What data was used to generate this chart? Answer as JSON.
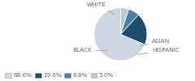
{
  "labels": [
    "WHITE",
    "BLACK",
    "ASIAN",
    "HISPANIC"
  ],
  "values": [
    68.6,
    19.6,
    6.8,
    5.0
  ],
  "colors": [
    "#cdd6e3",
    "#1e4d6b",
    "#4a7fa5",
    "#bec8d4"
  ],
  "legend_labels": [
    "68.6%",
    "19.6%",
    "6.8%",
    "5.0%"
  ],
  "background_color": "#ffffff",
  "startangle": 90,
  "label_fontsize": 5.2,
  "legend_fontsize": 5.2,
  "text_color": "#666666",
  "line_color": "#999999"
}
